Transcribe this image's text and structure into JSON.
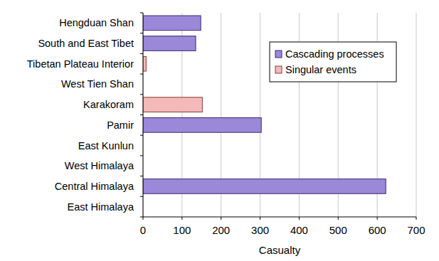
{
  "chart_data": {
    "type": "bar",
    "orientation": "horizontal",
    "stacked": true,
    "categories": [
      "Hengduan Shan",
      "South and East Tibet",
      "Tibetan Plateau Interior",
      "West Tien Shan",
      "Karakoram",
      "Pamir",
      "East Kunlun",
      "West Himalaya",
      "Central Himalaya",
      "East Himalaya"
    ],
    "series": [
      {
        "name": "Cascading processes",
        "color": "#9b88d9",
        "values": [
          148,
          135,
          null,
          null,
          null,
          303,
          null,
          null,
          622,
          null
        ]
      },
      {
        "name": "Singular events",
        "color": "#f4b9b9",
        "values": [
          null,
          null,
          8,
          null,
          152,
          null,
          null,
          null,
          null,
          null
        ]
      }
    ],
    "x_label": "Casualty",
    "xlim": [
      0,
      700
    ],
    "xticks": [
      0,
      100,
      200,
      300,
      400,
      500,
      600,
      700
    ],
    "grid": true,
    "legend": "upper right"
  }
}
